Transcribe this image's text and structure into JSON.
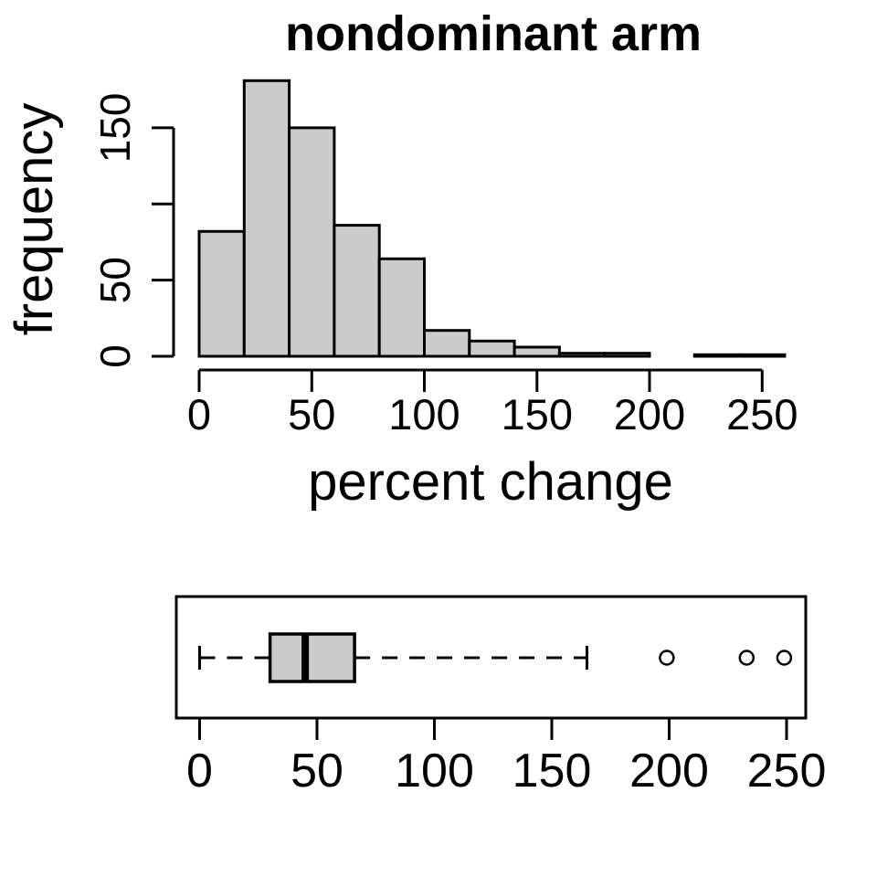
{
  "figure": {
    "background": "#FFFFFF",
    "text_color": "#000000"
  },
  "chart_data": [
    {
      "type": "bar",
      "subtype": "histogram",
      "title": "nondominant arm",
      "xlabel": "percent change",
      "ylabel": "frequency",
      "bin_edges": [
        0,
        20,
        40,
        60,
        80,
        100,
        120,
        140,
        160,
        180,
        200,
        220,
        240,
        260
      ],
      "counts": [
        82,
        181,
        150,
        86,
        64,
        17,
        10,
        6,
        2,
        2,
        0,
        1,
        1
      ],
      "x_ticks": [
        0,
        50,
        100,
        150,
        200,
        250
      ],
      "y_ticks": [
        0,
        50,
        100,
        150
      ],
      "y_tick_labels": [
        "0",
        "50",
        "",
        "150"
      ],
      "xlim": [
        0,
        260
      ],
      "ylim": [
        0,
        185
      ],
      "grid": false,
      "legend": "none",
      "bar_fill": "#CBCBCB",
      "bar_stroke": "#000000"
    },
    {
      "type": "boxplot",
      "orientation": "horizontal",
      "whisker_low": 0,
      "q1": 30,
      "median": 45,
      "q3": 66,
      "whisker_high": 165,
      "outliers": [
        199,
        233,
        249
      ],
      "x_ticks": [
        0,
        50,
        100,
        150,
        200,
        250
      ],
      "xlim": [
        -10,
        258
      ],
      "grid": false,
      "whisker_style": "dashed",
      "box_fill": "#CBCBCB",
      "box_stroke": "#000000",
      "outlier_marker": "open-circle"
    }
  ]
}
